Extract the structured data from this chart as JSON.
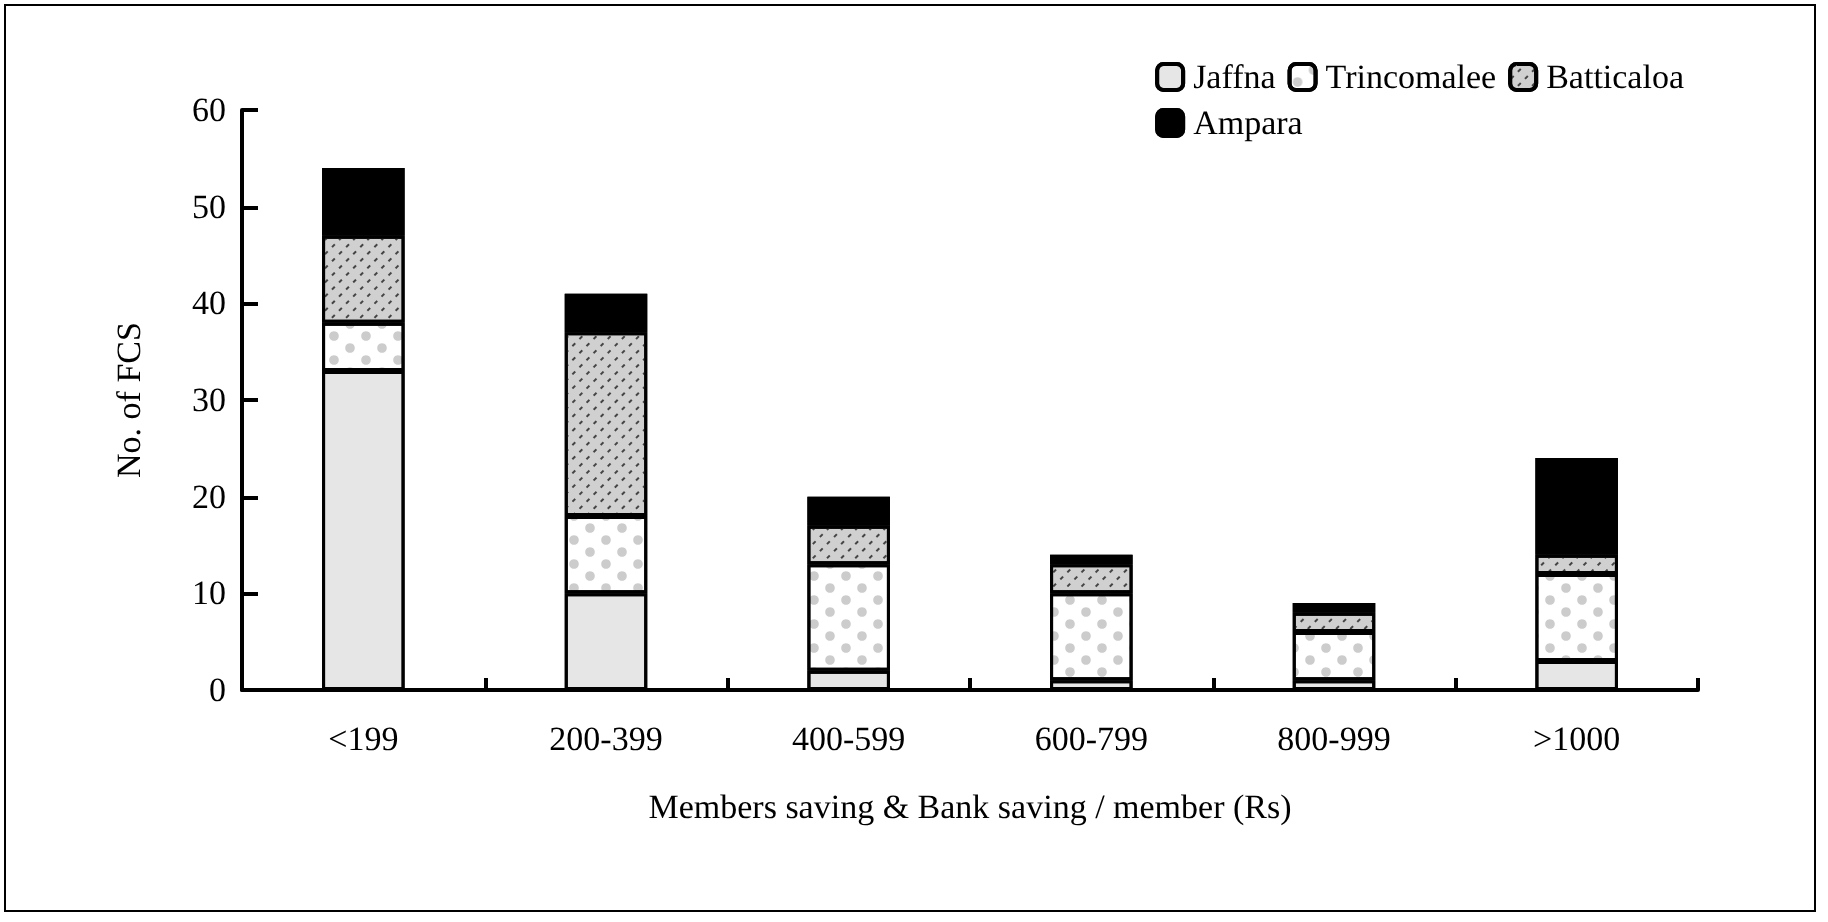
{
  "chart_data": {
    "type": "bar",
    "stacked": true,
    "xlabel": "Members saving & Bank saving / member (Rs)",
    "ylabel": "No. of FCS",
    "categories": [
      "<199",
      "200-399",
      "400-599",
      "600-799",
      "800-999",
      ">1000"
    ],
    "series": [
      {
        "name": "Jaffna",
        "color": "#e6e6e6",
        "values": [
          33,
          10,
          2,
          1,
          1,
          3
        ]
      },
      {
        "name": "Trincomalee",
        "color": "#ffffff",
        "values": [
          5,
          8,
          11,
          9,
          5,
          9
        ]
      },
      {
        "name": "Batticaloa",
        "color": "#d0d0d0",
        "values": [
          9,
          19,
          4,
          3,
          2,
          2
        ]
      },
      {
        "name": "Ampara",
        "color": "#000000",
        "values": [
          7,
          4,
          3,
          1,
          1,
          10
        ]
      }
    ],
    "ylim": [
      0,
      60
    ],
    "yticks": [
      0,
      10,
      20,
      30,
      40,
      50,
      60
    ],
    "grid": false,
    "legend": "top right"
  }
}
